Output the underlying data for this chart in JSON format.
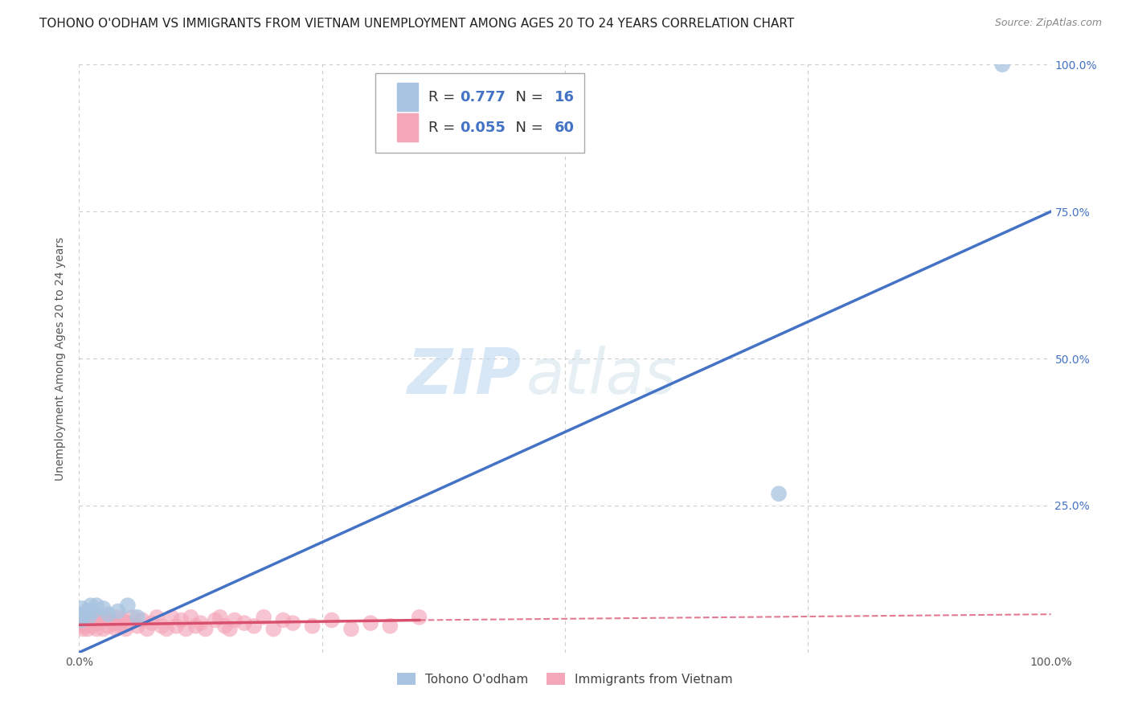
{
  "title": "TOHONO O'ODHAM VS IMMIGRANTS FROM VIETNAM UNEMPLOYMENT AMONG AGES 20 TO 24 YEARS CORRELATION CHART",
  "source": "Source: ZipAtlas.com",
  "ylabel": "Unemployment Among Ages 20 to 24 years",
  "watermark_zip": "ZIP",
  "watermark_atlas": "atlas",
  "xlim": [
    0,
    1
  ],
  "ylim": [
    0,
    1
  ],
  "xticks": [
    0,
    0.25,
    0.5,
    0.75,
    1.0
  ],
  "xticklabels": [
    "0.0%",
    "",
    "",
    "",
    "100.0%"
  ],
  "ytick_labels_right": [
    "",
    "25.0%",
    "50.0%",
    "75.0%",
    "100.0%"
  ],
  "yticks": [
    0,
    0.25,
    0.5,
    0.75,
    1.0
  ],
  "blue_series": {
    "label": "Tohono O'odham",
    "R": 0.777,
    "N": 16,
    "color": "#a8c4e0",
    "line_color": "#4472c4",
    "x": [
      0.001,
      0.002,
      0.003,
      0.005,
      0.008,
      0.01,
      0.012,
      0.015,
      0.018,
      0.025,
      0.03,
      0.04,
      0.05,
      0.06,
      0.72,
      0.95
    ],
    "y": [
      0.06,
      0.055,
      0.075,
      0.065,
      0.07,
      0.06,
      0.08,
      0.07,
      0.08,
      0.075,
      0.065,
      0.07,
      0.08,
      0.06,
      0.27,
      1.0
    ]
  },
  "pink_series": {
    "label": "Immigrants from Vietnam",
    "R": 0.055,
    "N": 60,
    "color": "#f4a7b9",
    "line_color": "#d94f6e",
    "x": [
      0.001,
      0.002,
      0.003,
      0.004,
      0.005,
      0.006,
      0.007,
      0.008,
      0.009,
      0.01,
      0.012,
      0.014,
      0.015,
      0.018,
      0.02,
      0.022,
      0.025,
      0.028,
      0.03,
      0.032,
      0.035,
      0.038,
      0.04,
      0.042,
      0.045,
      0.048,
      0.05,
      0.055,
      0.06,
      0.065,
      0.07,
      0.075,
      0.08,
      0.085,
      0.09,
      0.095,
      0.1,
      0.105,
      0.11,
      0.115,
      0.12,
      0.125,
      0.13,
      0.14,
      0.145,
      0.15,
      0.155,
      0.16,
      0.17,
      0.18,
      0.19,
      0.2,
      0.21,
      0.22,
      0.24,
      0.26,
      0.28,
      0.3,
      0.32,
      0.35
    ],
    "y": [
      0.05,
      0.045,
      0.055,
      0.04,
      0.06,
      0.05,
      0.045,
      0.055,
      0.04,
      0.05,
      0.06,
      0.045,
      0.055,
      0.04,
      0.05,
      0.055,
      0.04,
      0.06,
      0.045,
      0.055,
      0.05,
      0.04,
      0.06,
      0.045,
      0.055,
      0.04,
      0.05,
      0.06,
      0.045,
      0.055,
      0.04,
      0.05,
      0.06,
      0.045,
      0.04,
      0.06,
      0.045,
      0.055,
      0.04,
      0.06,
      0.045,
      0.05,
      0.04,
      0.055,
      0.06,
      0.045,
      0.04,
      0.055,
      0.05,
      0.045,
      0.06,
      0.04,
      0.055,
      0.05,
      0.045,
      0.055,
      0.04,
      0.05,
      0.045,
      0.06
    ]
  },
  "blue_line": {
    "x0": 0.0,
    "y0": 0.0,
    "x1": 1.0,
    "y1": 0.75
  },
  "pink_line_solid": {
    "x0": 0.0,
    "y0": 0.047,
    "x1": 0.35,
    "y1": 0.055
  },
  "pink_line_dash": {
    "x0": 0.35,
    "y0": 0.055,
    "x1": 1.0,
    "y1": 0.065
  },
  "background_color": "#ffffff",
  "grid_color": "#cccccc",
  "title_fontsize": 11,
  "axis_fontsize": 10
}
